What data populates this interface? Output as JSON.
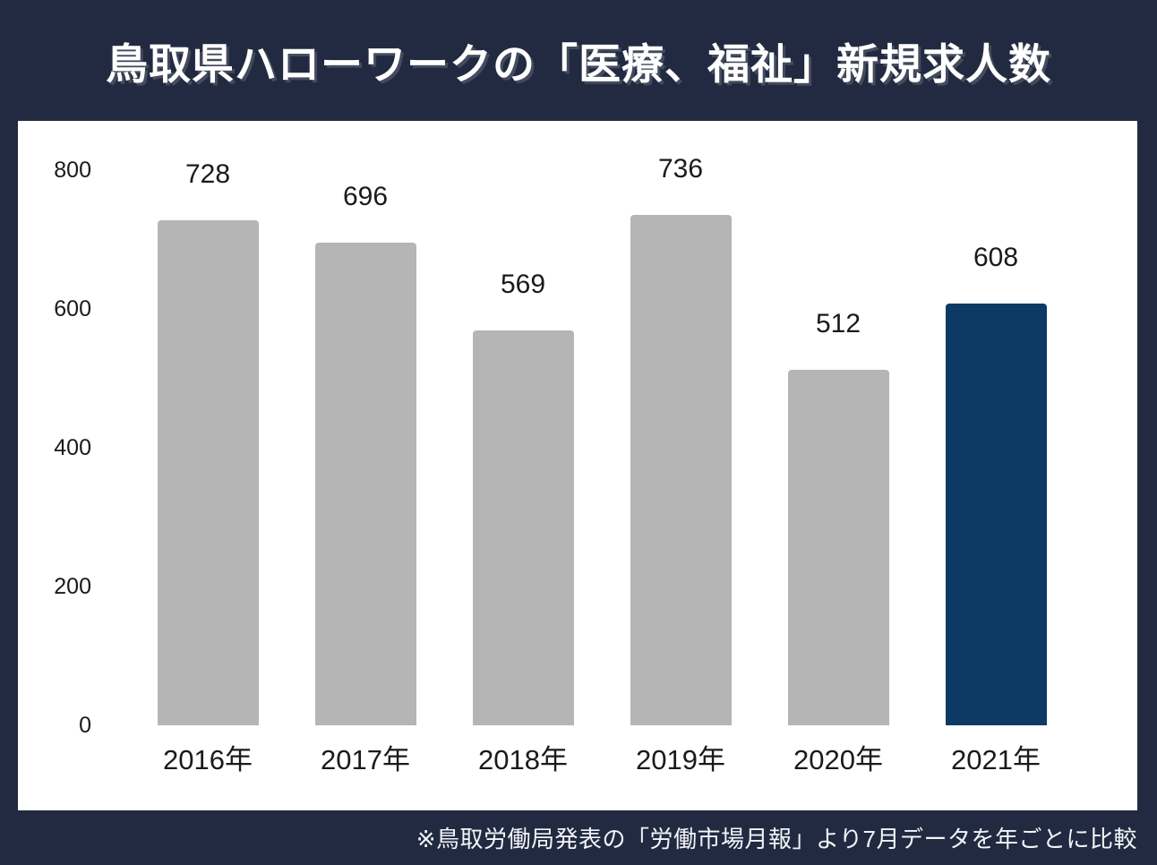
{
  "title": "鳥取県ハローワークの「医療、福祉」新規求人数",
  "footnote": "※鳥取労働局発表の「労働市場月報」より7月データを年ごとに比較",
  "colors": {
    "background": "#212a40",
    "panel": "#ffffff",
    "bar_default": "#b5b5b5",
    "bar_highlight": "#0d3a64",
    "title_text": "#ffffff",
    "axis_text": "#1a1a1a"
  },
  "chart_data": {
    "type": "bar",
    "title": "鳥取県ハローワークの「医療、福祉」新規求人数",
    "categories": [
      "2016年",
      "2017年",
      "2018年",
      "2019年",
      "2020年",
      "2021年"
    ],
    "values": [
      728,
      696,
      569,
      736,
      512,
      608
    ],
    "highlight_index": 5,
    "xlabel": "",
    "ylabel": "",
    "ylim": [
      0,
      800
    ],
    "y_ticks": [
      0,
      200,
      400,
      600,
      800
    ],
    "grid": false,
    "legend": false,
    "value_labels_shown": true,
    "annotation": "※鳥取労働局発表の「労働市場月報」より7月データを年ごとに比較"
  }
}
